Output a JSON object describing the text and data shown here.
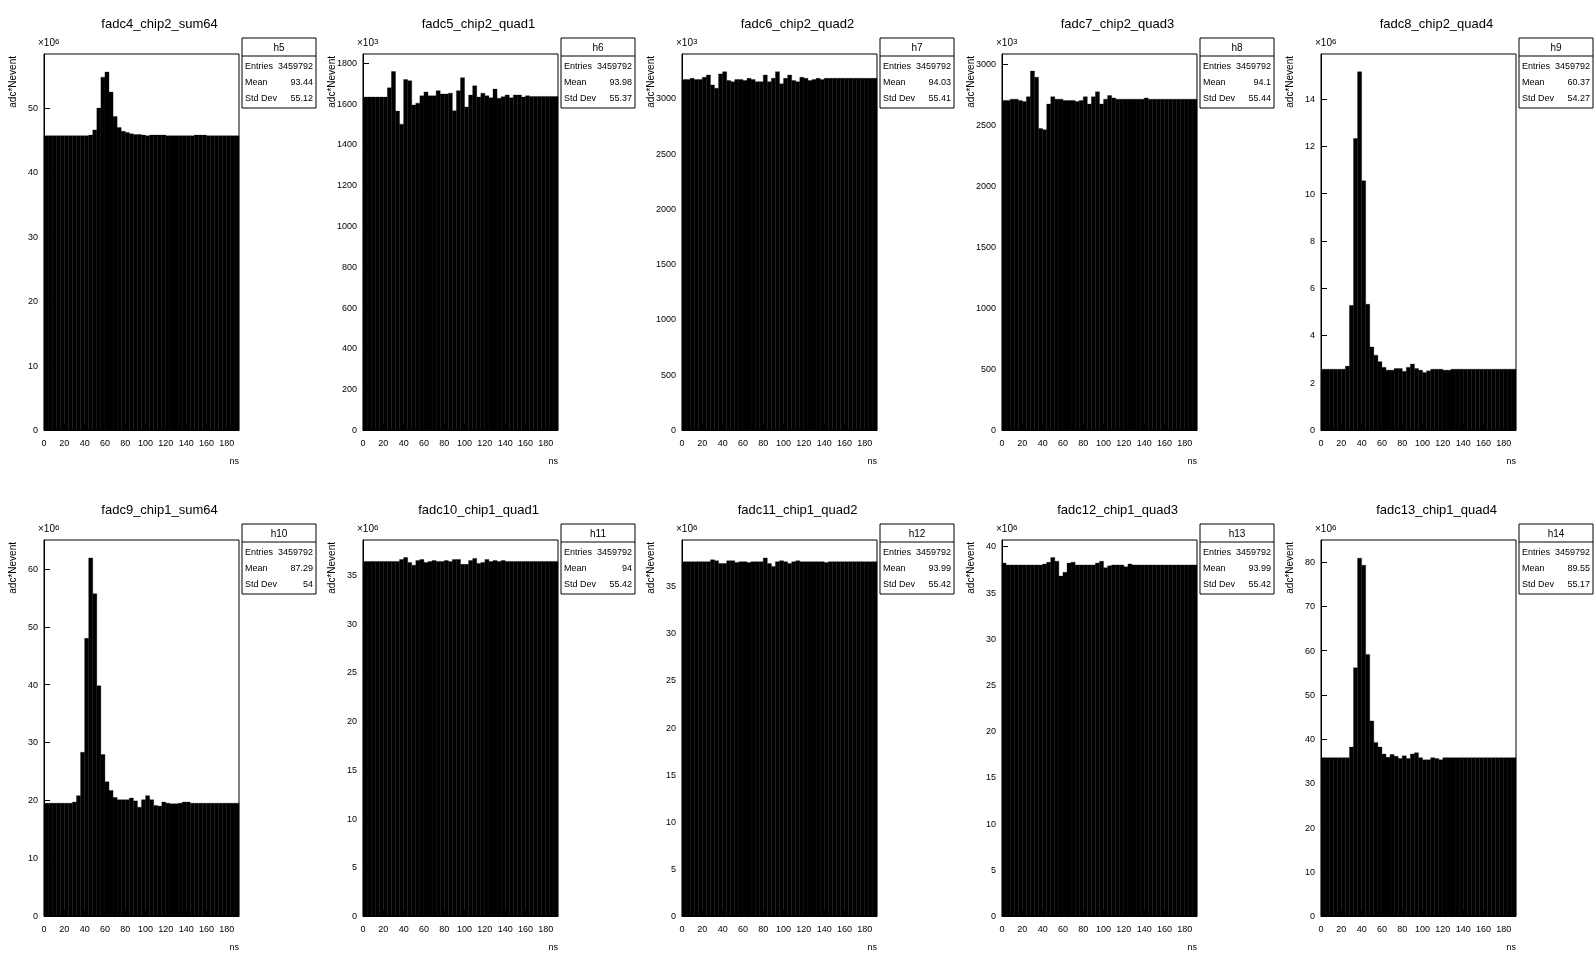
{
  "chart_data": [
    {
      "type": "histogram",
      "title": "fadc4_chip2_sum64",
      "xlabel": "ns",
      "ylabel": "adc*Nevent",
      "color": "#000000",
      "xlim": [
        0,
        192
      ],
      "xticks": [
        0,
        20,
        40,
        60,
        80,
        100,
        120,
        140,
        160,
        180
      ],
      "ylim": [
        0,
        58.4
      ],
      "yticks": [
        0,
        10,
        20,
        30,
        40,
        50
      ],
      "bins": [
        0,
        4,
        8,
        12,
        16,
        20,
        24,
        28,
        32,
        36,
        40,
        44,
        48,
        52,
        56,
        60,
        64,
        68,
        72,
        76,
        80,
        84,
        88,
        92,
        96,
        100,
        104,
        108,
        112,
        116,
        120,
        124,
        128,
        132,
        136,
        140,
        144,
        148,
        152,
        156,
        160,
        164,
        168,
        172,
        176,
        180,
        184,
        188,
        192
      ],
      "values": [
        45.7,
        45.7,
        45.7,
        45.7,
        45.7,
        45.7,
        45.7,
        45.7,
        45.7,
        45.7,
        45.7,
        45.8,
        46.6,
        50.0,
        54.8,
        55.6,
        52.5,
        48.7,
        47.0,
        46.4,
        46.2,
        46.0,
        45.9,
        45.9,
        45.8,
        45.7,
        45.8,
        45.8,
        45.8,
        45.8,
        45.7,
        45.7,
        45.7,
        45.7,
        45.7,
        45.7,
        45.7,
        45.8,
        45.8,
        45.8,
        45.7,
        45.7,
        45.7,
        45.7,
        45.7,
        45.7,
        45.7,
        45.7
      ],
      "annotations": [
        "×10$^{6}$",
        "h5",
        "Entries",
        "3459792",
        "Mean",
        "93.44",
        "Std Dev",
        "55.12"
      ]
    },
    {
      "type": "histogram",
      "title": "fadc5_chip2_quad1",
      "xlabel": "ns",
      "ylabel": "adc*Nevent",
      "color": "#000000",
      "xlim": [
        0,
        192
      ],
      "xticks": [
        0,
        20,
        40,
        60,
        80,
        100,
        120,
        140,
        160,
        180
      ],
      "ylim": [
        0,
        1843
      ],
      "yticks": [
        0,
        200,
        400,
        600,
        800,
        1000,
        1200,
        1400,
        1600,
        1800
      ],
      "bins": [
        0,
        4,
        8,
        12,
        16,
        20,
        24,
        28,
        32,
        36,
        40,
        44,
        48,
        52,
        56,
        60,
        64,
        68,
        72,
        76,
        80,
        84,
        88,
        92,
        96,
        100,
        104,
        108,
        112,
        116,
        120,
        124,
        128,
        132,
        136,
        140,
        144,
        148,
        152,
        156,
        160,
        164,
        168,
        172,
        176,
        180,
        184,
        188,
        192
      ],
      "values": [
        1632,
        1632,
        1632,
        1632,
        1632,
        1632,
        1677,
        1757,
        1563,
        1499,
        1718,
        1712,
        1593,
        1602,
        1638,
        1657,
        1638,
        1638,
        1663,
        1647,
        1647,
        1651,
        1565,
        1663,
        1727,
        1583,
        1642,
        1687,
        1632,
        1651,
        1638,
        1628,
        1671,
        1626,
        1634,
        1642,
        1628,
        1642,
        1642,
        1632,
        1638,
        1635,
        1635,
        1635,
        1635,
        1635,
        1635,
        1635
      ],
      "annotations": [
        "×10$^{3}$",
        "h6",
        "Entries",
        "3459792",
        "Mean",
        "93.98",
        "Std Dev",
        "55.37"
      ]
    },
    {
      "type": "histogram",
      "title": "fadc6_chip2_quad2",
      "xlabel": "ns",
      "ylabel": "adc*Nevent",
      "color": "#000000",
      "xlim": [
        0,
        192
      ],
      "xticks": [
        0,
        20,
        40,
        60,
        80,
        100,
        120,
        140,
        160,
        180
      ],
      "ylim": [
        0,
        3400
      ],
      "yticks": [
        0,
        500,
        1000,
        1500,
        2000,
        2500,
        3000
      ],
      "bins": [
        0,
        4,
        8,
        12,
        16,
        20,
        24,
        28,
        32,
        36,
        40,
        44,
        48,
        52,
        56,
        60,
        64,
        68,
        72,
        76,
        80,
        84,
        88,
        92,
        96,
        100,
        104,
        108,
        112,
        116,
        120,
        124,
        128,
        132,
        136,
        140,
        144,
        148,
        152,
        156,
        160,
        164,
        168,
        172,
        176,
        180,
        184,
        188,
        192
      ],
      "values": [
        3170,
        3170,
        3180,
        3170,
        3170,
        3190,
        3210,
        3120,
        3090,
        3220,
        3240,
        3160,
        3150,
        3170,
        3170,
        3160,
        3180,
        3170,
        3150,
        3150,
        3210,
        3150,
        3180,
        3240,
        3130,
        3180,
        3210,
        3160,
        3150,
        3190,
        3180,
        3160,
        3170,
        3180,
        3170,
        3180,
        3180,
        3180,
        3180,
        3180,
        3180,
        3180,
        3180,
        3180,
        3180,
        3180,
        3180,
        3180
      ],
      "annotations": [
        "×10$^{3}$",
        "h7",
        "Entries",
        "3459792",
        "Mean",
        "94.03",
        "Std Dev",
        "55.41"
      ]
    },
    {
      "type": "histogram",
      "title": "fadc7_chip2_quad3",
      "xlabel": "ns",
      "ylabel": "adc*Nevent",
      "color": "#000000",
      "xlim": [
        0,
        192
      ],
      "xticks": [
        0,
        20,
        40,
        60,
        80,
        100,
        120,
        140,
        160,
        180
      ],
      "ylim": [
        0,
        3080
      ],
      "yticks": [
        0,
        500,
        1000,
        1500,
        2000,
        2500,
        3000
      ],
      "bins": [
        0,
        4,
        8,
        12,
        16,
        20,
        24,
        28,
        32,
        36,
        40,
        44,
        48,
        52,
        56,
        60,
        64,
        68,
        72,
        76,
        80,
        84,
        88,
        92,
        96,
        100,
        104,
        108,
        112,
        116,
        120,
        124,
        128,
        132,
        136,
        140,
        144,
        148,
        152,
        156,
        160,
        164,
        168,
        172,
        176,
        180,
        184,
        188,
        192
      ],
      "values": [
        2700,
        2700,
        2710,
        2710,
        2700,
        2690,
        2730,
        2940,
        2890,
        2470,
        2460,
        2670,
        2730,
        2710,
        2710,
        2700,
        2700,
        2700,
        2690,
        2700,
        2730,
        2670,
        2730,
        2770,
        2670,
        2710,
        2740,
        2720,
        2710,
        2710,
        2710,
        2710,
        2710,
        2710,
        2710,
        2720,
        2710,
        2710,
        2710,
        2710,
        2710,
        2710,
        2710,
        2710,
        2710,
        2710,
        2710,
        2710
      ],
      "annotations": [
        "×10$^{3}$",
        "h8",
        "Entries",
        "3459792",
        "Mean",
        "94.1",
        "Std Dev",
        "55.44"
      ]
    },
    {
      "type": "histogram",
      "title": "fadc8_chip2_quad4",
      "xlabel": "ns",
      "ylabel": "adc*Nevent",
      "color": "#000000",
      "xlim": [
        0,
        192
      ],
      "xticks": [
        0,
        20,
        40,
        60,
        80,
        100,
        120,
        140,
        160,
        180
      ],
      "ylim": [
        0,
        15.9
      ],
      "yticks": [
        0,
        2,
        4,
        6,
        8,
        10,
        12,
        14
      ],
      "bins": [
        0,
        4,
        8,
        12,
        16,
        20,
        24,
        28,
        32,
        36,
        40,
        44,
        48,
        52,
        56,
        60,
        64,
        68,
        72,
        76,
        80,
        84,
        88,
        92,
        96,
        100,
        104,
        108,
        112,
        116,
        120,
        124,
        128,
        132,
        136,
        140,
        144,
        148,
        152,
        156,
        160,
        164,
        168,
        172,
        176,
        180,
        184,
        188,
        192
      ],
      "values": [
        2.57,
        2.57,
        2.57,
        2.57,
        2.57,
        2.57,
        2.7,
        5.27,
        12.33,
        15.15,
        10.54,
        5.32,
        3.51,
        3.16,
        2.89,
        2.65,
        2.53,
        2.53,
        2.6,
        2.6,
        2.48,
        2.65,
        2.79,
        2.6,
        2.53,
        2.43,
        2.5,
        2.57,
        2.57,
        2.57,
        2.53,
        2.53,
        2.57,
        2.57,
        2.57,
        2.57,
        2.57,
        2.57,
        2.57,
        2.57,
        2.57,
        2.57,
        2.57,
        2.57,
        2.57,
        2.57,
        2.57,
        2.57
      ],
      "annotations": [
        "×10$^{6}$",
        "h9",
        "Entries",
        "3459792",
        "Mean",
        "60.37",
        "Std Dev",
        "54.27"
      ]
    },
    {
      "type": "histogram",
      "title": "fadc9_chip1_sum64",
      "xlabel": "ns",
      "ylabel": "adc*Nevent",
      "color": "#000000",
      "xlim": [
        0,
        192
      ],
      "xticks": [
        0,
        20,
        40,
        60,
        80,
        100,
        120,
        140,
        160,
        180
      ],
      "ylim": [
        0,
        65
      ],
      "yticks": [
        0,
        10,
        20,
        30,
        40,
        50,
        60
      ],
      "bins": [
        0,
        4,
        8,
        12,
        16,
        20,
        24,
        28,
        32,
        36,
        40,
        44,
        48,
        52,
        56,
        60,
        64,
        68,
        72,
        76,
        80,
        84,
        88,
        92,
        96,
        100,
        104,
        108,
        112,
        116,
        120,
        124,
        128,
        132,
        136,
        140,
        144,
        148,
        152,
        156,
        160,
        164,
        168,
        172,
        176,
        180,
        184,
        188,
        192
      ],
      "values": [
        19.5,
        19.5,
        19.5,
        19.5,
        19.5,
        19.5,
        19.5,
        19.7,
        20.8,
        28.3,
        48.0,
        61.9,
        55.7,
        39.8,
        27.9,
        23.2,
        21.7,
        20.5,
        20.1,
        20.1,
        20.1,
        20.4,
        19.9,
        18.8,
        20.1,
        20.8,
        20.1,
        19.1,
        19.0,
        19.7,
        19.5,
        19.4,
        19.4,
        19.5,
        19.7,
        19.7,
        19.5,
        19.5,
        19.5,
        19.5,
        19.5,
        19.5,
        19.5,
        19.5,
        19.5,
        19.5,
        19.5,
        19.5
      ],
      "annotations": [
        "×10$^{6}$",
        "h10",
        "Entries",
        "3459792",
        "Mean",
        "87.29",
        "Std Dev",
        "54"
      ]
    },
    {
      "type": "histogram",
      "title": "fadc10_chip1_quad1",
      "xlabel": "ns",
      "ylabel": "adc*Nevent",
      "color": "#000000",
      "xlim": [
        0,
        192
      ],
      "xticks": [
        0,
        20,
        40,
        60,
        80,
        100,
        120,
        140,
        160,
        180
      ],
      "ylim": [
        0,
        38.6
      ],
      "yticks": [
        0,
        5,
        10,
        15,
        20,
        25,
        30,
        35
      ],
      "bins": [
        0,
        4,
        8,
        12,
        16,
        20,
        24,
        28,
        32,
        36,
        40,
        44,
        48,
        52,
        56,
        60,
        64,
        68,
        72,
        76,
        80,
        84,
        88,
        92,
        96,
        100,
        104,
        108,
        112,
        116,
        120,
        124,
        128,
        132,
        136,
        140,
        144,
        148,
        152,
        156,
        160,
        164,
        168,
        172,
        176,
        180,
        184,
        188,
        192
      ],
      "values": [
        36.4,
        36.4,
        36.4,
        36.4,
        36.4,
        36.4,
        36.4,
        36.4,
        36.4,
        36.6,
        36.8,
        36.3,
        36.0,
        36.5,
        36.6,
        36.3,
        36.4,
        36.5,
        36.4,
        36.4,
        36.5,
        36.4,
        36.6,
        36.6,
        36.1,
        36.1,
        36.5,
        36.7,
        36.2,
        36.3,
        36.6,
        36.4,
        36.5,
        36.4,
        36.5,
        36.4,
        36.4,
        36.4,
        36.4,
        36.4,
        36.4,
        36.4,
        36.4,
        36.4,
        36.4,
        36.4,
        36.4,
        36.4
      ],
      "annotations": [
        "×10$^{6}$",
        "h11",
        "Entries",
        "3459792",
        "Mean",
        "94",
        "Std Dev",
        "55.42"
      ]
    },
    {
      "type": "histogram",
      "title": "fadc11_chip1_quad2",
      "xlabel": "ns",
      "ylabel": "adc*Nevent",
      "color": "#000000",
      "xlim": [
        0,
        192
      ],
      "xticks": [
        0,
        20,
        40,
        60,
        80,
        100,
        120,
        140,
        160,
        180
      ],
      "ylim": [
        0,
        39.9
      ],
      "yticks": [
        0,
        5,
        10,
        15,
        20,
        25,
        30,
        35
      ],
      "bins": [
        0,
        4,
        8,
        12,
        16,
        20,
        24,
        28,
        32,
        36,
        40,
        44,
        48,
        52,
        56,
        60,
        64,
        68,
        72,
        76,
        80,
        84,
        88,
        92,
        96,
        100,
        104,
        108,
        112,
        116,
        120,
        124,
        128,
        132,
        136,
        140,
        144,
        148,
        152,
        156,
        160,
        164,
        168,
        172,
        176,
        180,
        184,
        188,
        192
      ],
      "values": [
        37.6,
        37.6,
        37.6,
        37.6,
        37.6,
        37.6,
        37.6,
        37.8,
        37.7,
        37.4,
        37.4,
        37.7,
        37.7,
        37.5,
        37.6,
        37.6,
        37.5,
        37.6,
        37.6,
        37.6,
        38.0,
        37.4,
        37.1,
        37.6,
        37.7,
        37.6,
        37.4,
        37.6,
        37.7,
        37.6,
        37.6,
        37.6,
        37.6,
        37.6,
        37.6,
        37.5,
        37.6,
        37.6,
        37.6,
        37.6,
        37.6,
        37.6,
        37.6,
        37.6,
        37.6,
        37.6,
        37.6,
        37.6
      ],
      "annotations": [
        "×10$^{6}$",
        "h12",
        "Entries",
        "3459792",
        "Mean",
        "93.99",
        "Std Dev",
        "55.42"
      ]
    },
    {
      "type": "histogram",
      "title": "fadc12_chip1_quad3",
      "xlabel": "ns",
      "ylabel": "adc*Nevent",
      "color": "#000000",
      "xlim": [
        0,
        192
      ],
      "xticks": [
        0,
        20,
        40,
        60,
        80,
        100,
        120,
        140,
        160,
        180
      ],
      "ylim": [
        0,
        40.7
      ],
      "yticks": [
        0,
        5,
        10,
        15,
        20,
        25,
        30,
        35,
        40
      ],
      "bins": [
        0,
        4,
        8,
        12,
        16,
        20,
        24,
        28,
        32,
        36,
        40,
        44,
        48,
        52,
        56,
        60,
        64,
        68,
        72,
        76,
        80,
        84,
        88,
        92,
        96,
        100,
        104,
        108,
        112,
        116,
        120,
        124,
        128,
        132,
        136,
        140,
        144,
        148,
        152,
        156,
        160,
        164,
        168,
        172,
        176,
        180,
        184,
        188,
        192
      ],
      "values": [
        38.2,
        38.0,
        38.0,
        38.0,
        38.0,
        38.0,
        38.0,
        38.0,
        38.0,
        38.0,
        38.1,
        38.3,
        38.8,
        38.4,
        36.8,
        37.2,
        38.2,
        38.3,
        38.0,
        38.0,
        38.0,
        38.0,
        38.0,
        38.2,
        38.4,
        37.7,
        37.9,
        38.0,
        38.0,
        38.0,
        37.8,
        38.1,
        38.0,
        38.0,
        38.0,
        38.0,
        38.0,
        38.0,
        38.0,
        38.0,
        38.0,
        38.0,
        38.0,
        38.0,
        38.0,
        38.0,
        38.0,
        38.0
      ],
      "annotations": [
        "×10$^{6}$",
        "h13",
        "Entries",
        "3459792",
        "Mean",
        "93.99",
        "Std Dev",
        "55.42"
      ]
    },
    {
      "type": "histogram",
      "title": "fadc13_chip1_quad4",
      "xlabel": "ns",
      "ylabel": "adc*Nevent",
      "color": "#000000",
      "xlim": [
        0,
        192
      ],
      "xticks": [
        0,
        20,
        40,
        60,
        80,
        100,
        120,
        140,
        160,
        180
      ],
      "ylim": [
        0,
        85
      ],
      "yticks": [
        0,
        10,
        20,
        30,
        40,
        50,
        60,
        70,
        80
      ],
      "bins": [
        0,
        4,
        8,
        12,
        16,
        20,
        24,
        28,
        32,
        36,
        40,
        44,
        48,
        52,
        56,
        60,
        64,
        68,
        72,
        76,
        80,
        84,
        88,
        92,
        96,
        100,
        104,
        108,
        112,
        116,
        120,
        124,
        128,
        132,
        136,
        140,
        144,
        148,
        152,
        156,
        160,
        164,
        168,
        172,
        176,
        180,
        184,
        188,
        192
      ],
      "values": [
        35.8,
        35.8,
        35.8,
        35.8,
        35.8,
        35.8,
        35.8,
        38.2,
        56.1,
        80.9,
        79.3,
        59.1,
        44.1,
        39.2,
        38.2,
        36.6,
        35.9,
        36.5,
        36.1,
        35.6,
        36.2,
        35.6,
        36.6,
        36.9,
        35.8,
        35.3,
        35.3,
        35.8,
        35.6,
        35.3,
        35.8,
        35.8,
        35.8,
        35.8,
        35.8,
        35.8,
        35.8,
        35.8,
        35.8,
        35.8,
        35.8,
        35.8,
        35.8,
        35.8,
        35.8,
        35.8,
        35.8,
        35.8
      ],
      "annotations": [
        "×10$^{6}$",
        "h14",
        "Entries",
        "3459792",
        "Mean",
        "89.55",
        "Std Dev",
        "55.17"
      ]
    }
  ]
}
